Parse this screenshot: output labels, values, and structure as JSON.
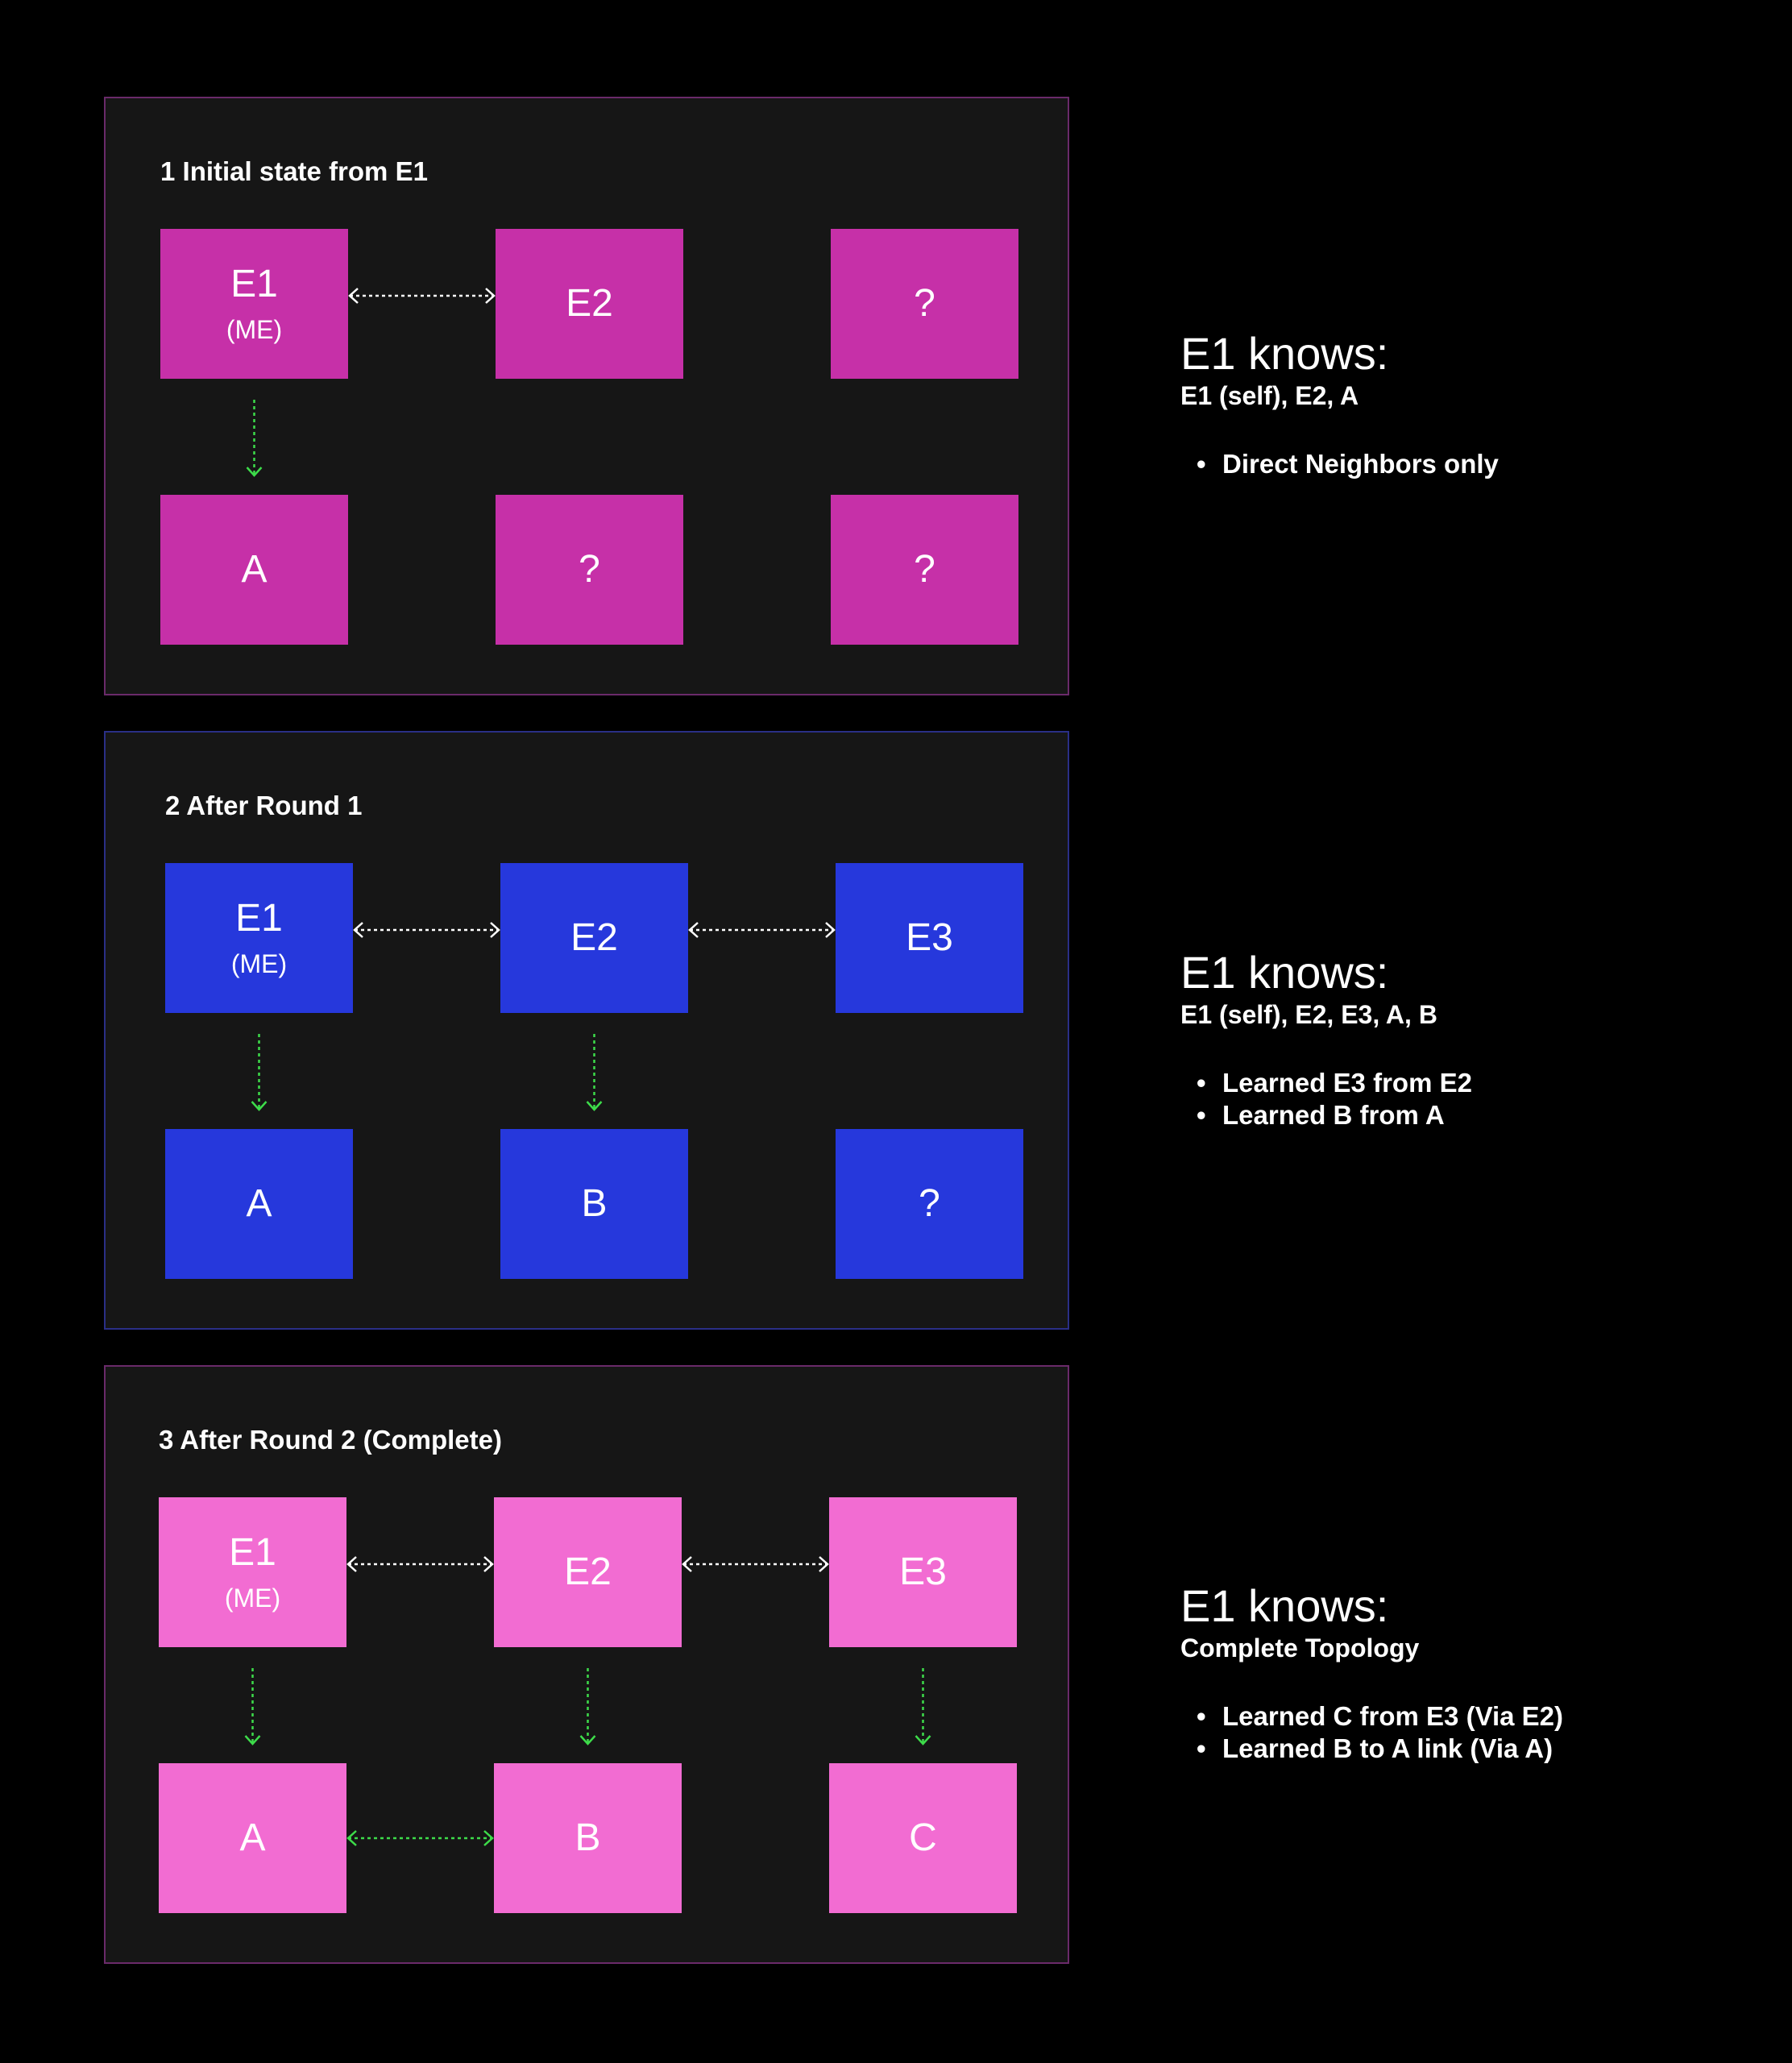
{
  "colors": {
    "background": "#000000",
    "panel_bg": "#161616",
    "h_arrow": "#ffffff",
    "v_arrow": "#3ddc4a"
  },
  "panels": [
    {
      "title": "1 Initial state from E1",
      "border": "#6a2a6a",
      "node_color": "#c630a8",
      "nodes": [
        {
          "label": "E1",
          "sub": "(ME)"
        },
        {
          "label": "E2",
          "sub": ""
        },
        {
          "label": "?",
          "sub": ""
        },
        {
          "label": "A",
          "sub": ""
        },
        {
          "label": "?",
          "sub": ""
        },
        {
          "label": "?",
          "sub": ""
        }
      ],
      "links": {
        "h_top_left": true,
        "h_top_right": false,
        "h_bottom_left": false,
        "v_left": true,
        "v_middle": false,
        "v_right": false
      },
      "info": {
        "heading": "E1 knows:",
        "sub": "E1 (self), E2, A",
        "bullets": [
          "Direct Neighbors only"
        ]
      }
    },
    {
      "title": "2 After Round 1",
      "border": "#2a2f86",
      "node_color": "#2638dc",
      "nodes": [
        {
          "label": "E1",
          "sub": "(ME)"
        },
        {
          "label": "E2",
          "sub": ""
        },
        {
          "label": "E3",
          "sub": ""
        },
        {
          "label": "A",
          "sub": ""
        },
        {
          "label": "B",
          "sub": ""
        },
        {
          "label": "?",
          "sub": ""
        }
      ],
      "links": {
        "h_top_left": true,
        "h_top_right": true,
        "h_bottom_left": false,
        "v_left": true,
        "v_middle": true,
        "v_right": false
      },
      "info": {
        "heading": "E1 knows:",
        "sub": "E1 (self), E2, E3, A, B",
        "bullets": [
          "Learned E3 from E2",
          "Learned B from A"
        ]
      }
    },
    {
      "title": "3 After Round 2 (Complete)",
      "border": "#6a2a6a",
      "node_color": "#f26cd2",
      "nodes": [
        {
          "label": "E1",
          "sub": "(ME)"
        },
        {
          "label": "E2",
          "sub": ""
        },
        {
          "label": "E3",
          "sub": ""
        },
        {
          "label": "A",
          "sub": ""
        },
        {
          "label": "B",
          "sub": ""
        },
        {
          "label": "C",
          "sub": ""
        }
      ],
      "links": {
        "h_top_left": true,
        "h_top_right": true,
        "h_bottom_left": true,
        "v_left": true,
        "v_middle": true,
        "v_right": true
      },
      "info": {
        "heading": "E1 knows:",
        "sub": "Complete Topology",
        "bullets": [
          "Learned C from E3 (Via E2)",
          "Learned B to A link (Via A)"
        ]
      }
    }
  ]
}
